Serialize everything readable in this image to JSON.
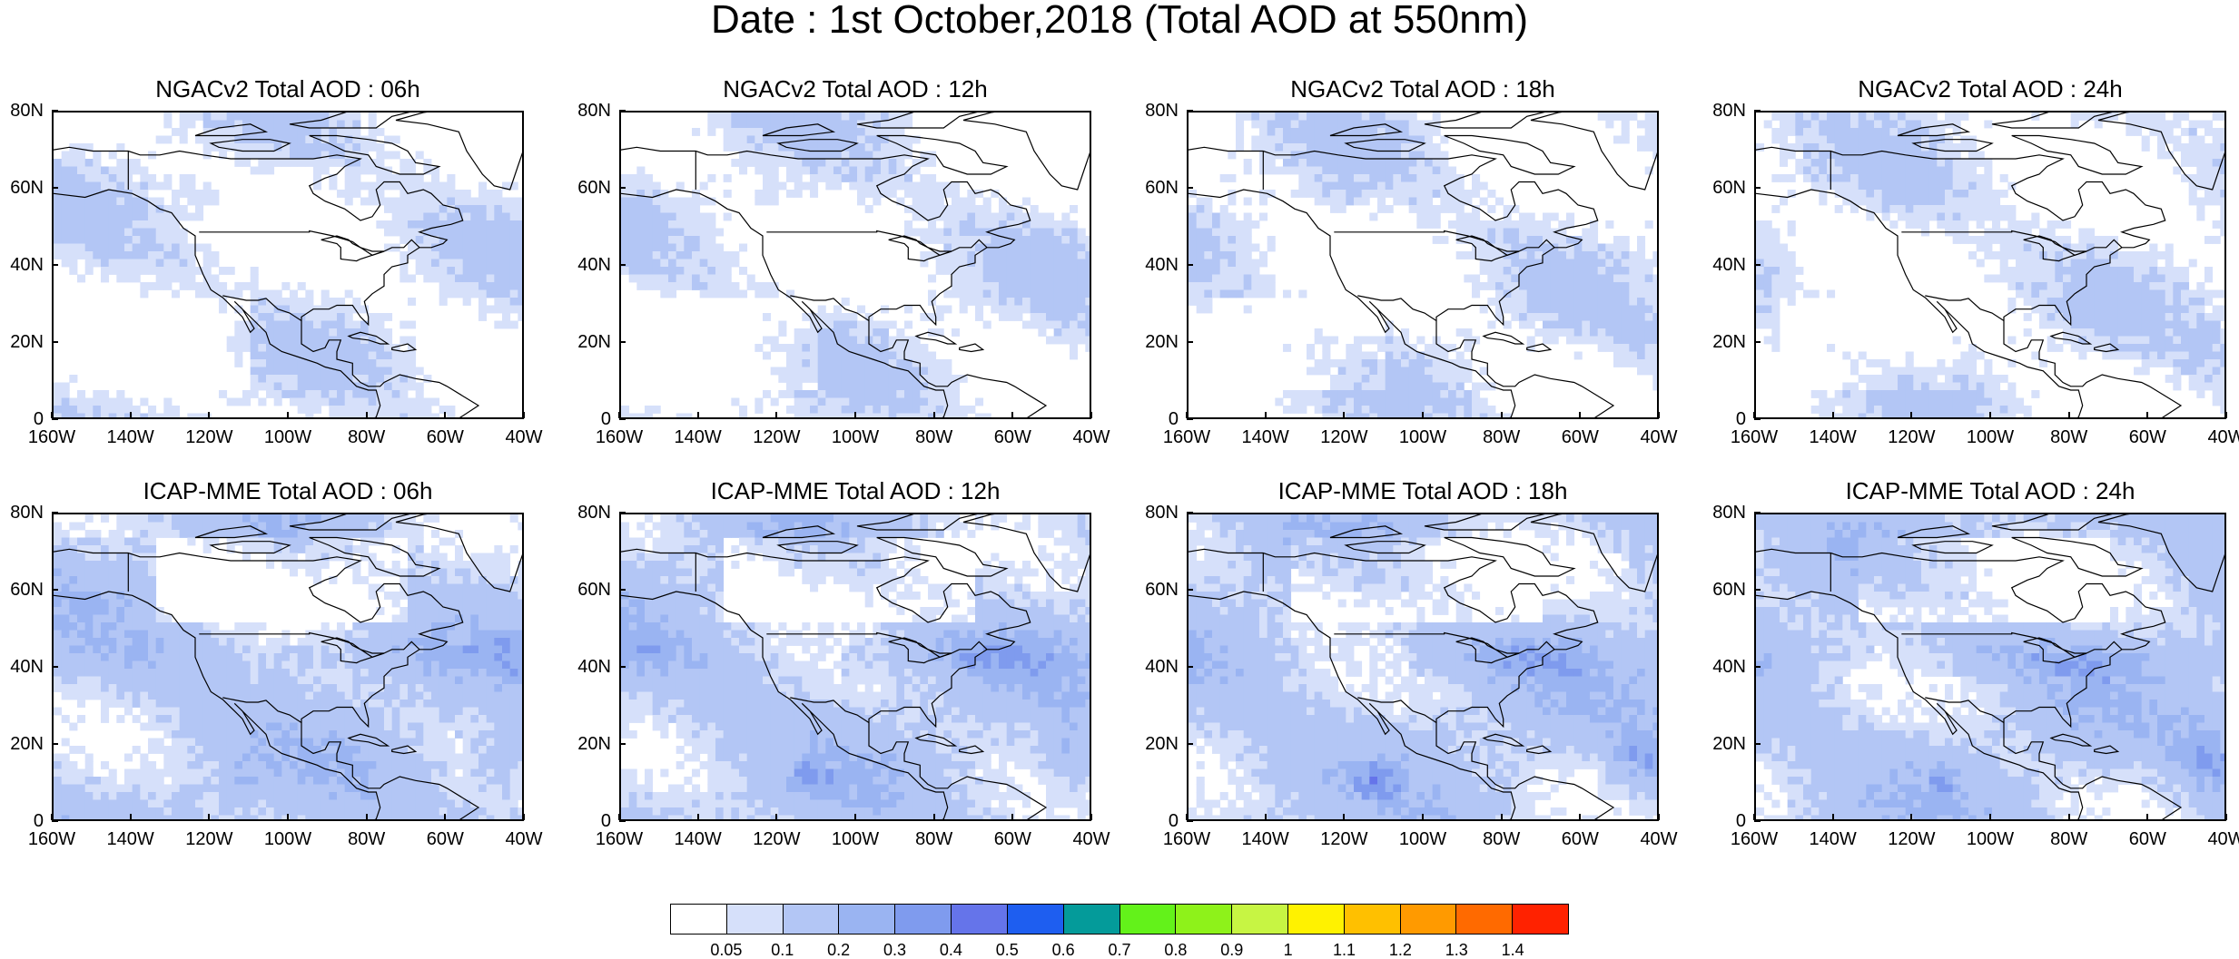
{
  "title": "Date : 1st October,2018 (Total AOD at 550nm)",
  "panels": [
    {
      "title": "NGACv2 Total AOD : 06h",
      "model": "NGACv2",
      "hour": "06h"
    },
    {
      "title": "NGACv2 Total AOD : 12h",
      "model": "NGACv2",
      "hour": "12h"
    },
    {
      "title": "NGACv2 Total AOD : 18h",
      "model": "NGACv2",
      "hour": "18h"
    },
    {
      "title": "NGACv2 Total AOD : 24h",
      "model": "NGACv2",
      "hour": "24h"
    },
    {
      "title": "ICAP-MME Total AOD : 06h",
      "model": "ICAP-MME",
      "hour": "06h"
    },
    {
      "title": "ICAP-MME Total AOD : 12h",
      "model": "ICAP-MME",
      "hour": "12h"
    },
    {
      "title": "ICAP-MME Total AOD : 18h",
      "model": "ICAP-MME",
      "hour": "18h"
    },
    {
      "title": "ICAP-MME Total AOD : 24h",
      "model": "ICAP-MME",
      "hour": "24h"
    }
  ],
  "lat_labels": [
    "80N",
    "60N",
    "40N",
    "20N",
    "0"
  ],
  "lon_labels": [
    "160W",
    "140W",
    "120W",
    "100W",
    "80W",
    "60W",
    "40W"
  ],
  "map_extent": {
    "lon_min": -160,
    "lon_max": -40,
    "lat_min": 0,
    "lat_max": 80
  },
  "colorbar": {
    "labels": [
      "0.05",
      "0.1",
      "0.2",
      "0.3",
      "0.4",
      "0.5",
      "0.6",
      "0.7",
      "0.8",
      "0.9",
      "1",
      "1.1",
      "1.2",
      "1.3",
      "1.4"
    ],
    "colors": [
      "#ffffff",
      "#d6e0fa",
      "#b3c6f5",
      "#9ab4f2",
      "#7f9bee",
      "#6574ea",
      "#1e5ef0",
      "#049b9a",
      "#63f21a",
      "#8ef21a",
      "#c7f543",
      "#fff200",
      "#ffc000",
      "#ff9a00",
      "#ff6a00",
      "#ff2200"
    ]
  }
}
